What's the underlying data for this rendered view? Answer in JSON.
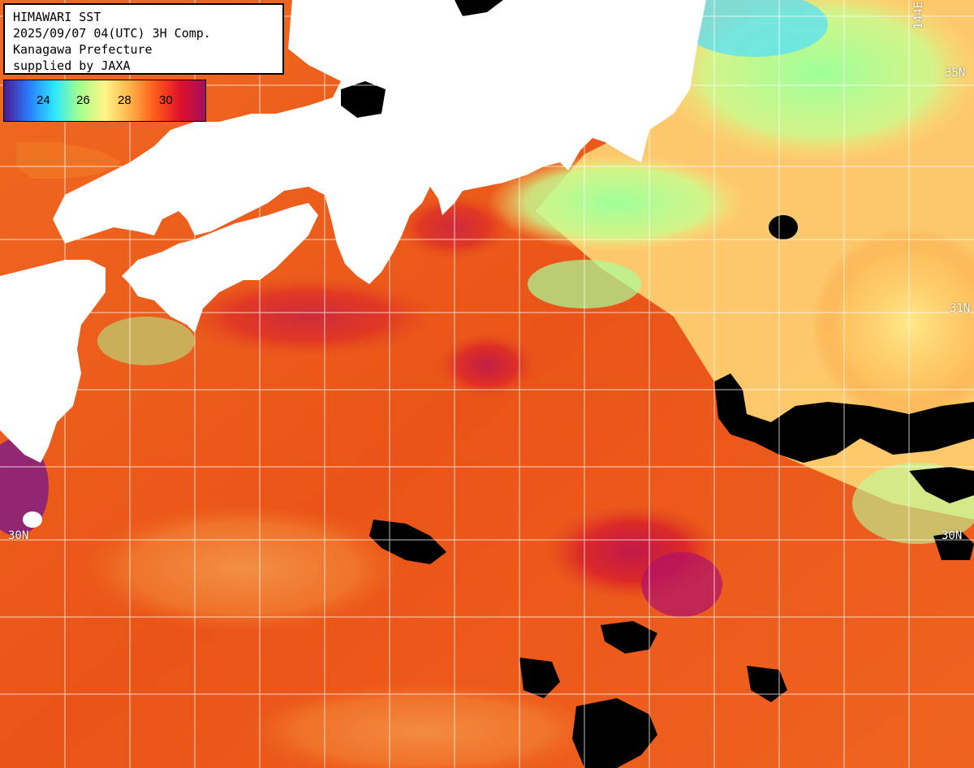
{
  "title_box": {
    "line1": "HIMAWARI SST",
    "line2": "2025/09/07 04(UTC) 3H Comp.",
    "line3": "Kanagawa Prefecture",
    "line4": "supplied by JAXA"
  },
  "legend": {
    "ticks": [
      "24",
      "26",
      "28",
      "30"
    ],
    "colors": [
      "#4b1a8e",
      "#2a7cff",
      "#29e8ff",
      "#a6ff8a",
      "#fff58a",
      "#ffb347",
      "#ff5a1a",
      "#e0102a",
      "#a0105a"
    ]
  },
  "grid_labels": {
    "lon_top_right": "144E",
    "lat_35_right": "35N",
    "lat_31_right": "31N",
    "lat_30_left": "30N",
    "lat_30_right": "30N"
  },
  "colors": {
    "land": "#ffffff",
    "cloud": "#000000",
    "gridline": "#ffffff",
    "warm_water": "#ef5a1a",
    "hot_water": "#d8222a",
    "cool_water": "#a8ff8f",
    "mild_water": "#ffd36b"
  }
}
